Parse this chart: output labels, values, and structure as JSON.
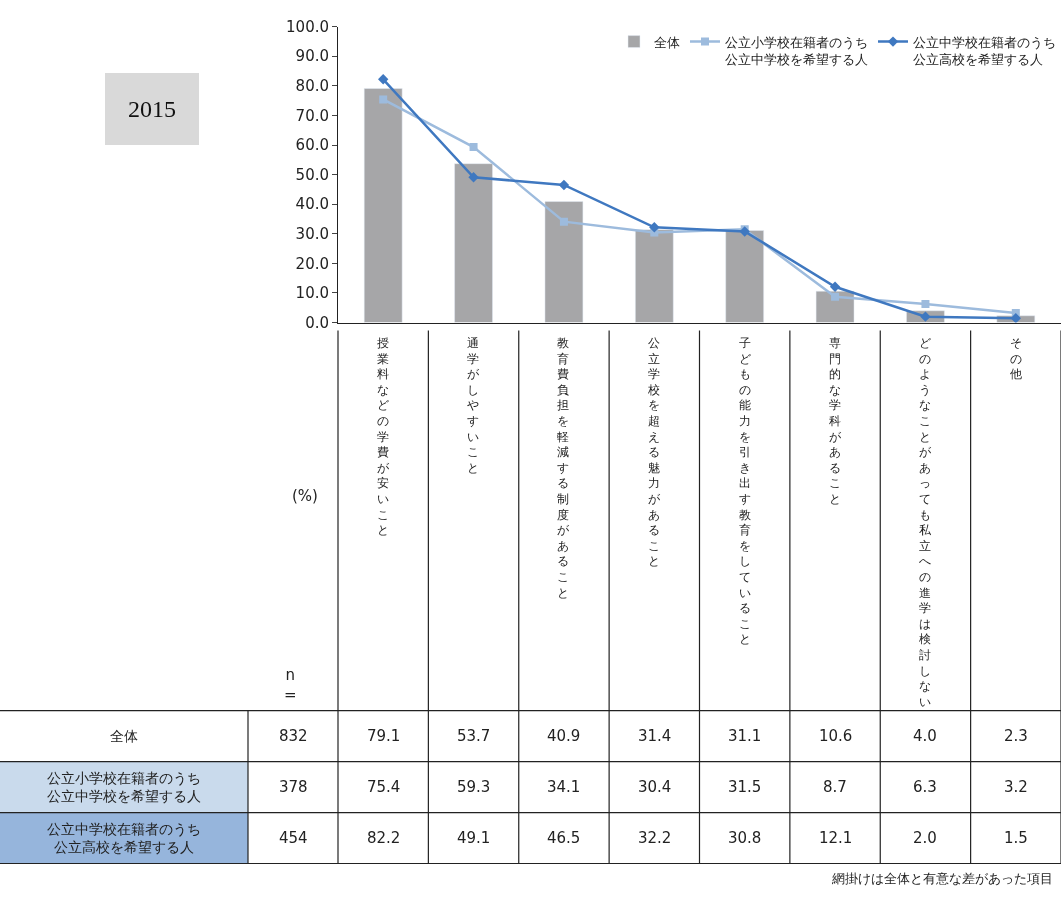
{
  "chart_data": {
    "type": "bar",
    "categories": [
      "授業料などの学費が安いこと",
      "通学がしやすいこと",
      "教育費負担を軽減する制度があること",
      "公立学校を超える魅力があること",
      "子どもの能力を引き出す教育をしていること",
      "専門的な学科があること",
      "どのようなことがあっても私立への進学は検討しない",
      "その他"
    ],
    "series": [
      {
        "name": "全体",
        "color": "#a6a6a8",
        "values": [
          79.1,
          53.7,
          40.9,
          31.4,
          31.1,
          10.6,
          4.0,
          2.3
        ],
        "value_labels": [
          "79.1",
          "53.7",
          "40.9",
          "31.4",
          "31.1",
          "10.6",
          "4.0",
          "2.3"
        ]
      },
      {
        "name": "公立小学校在籍者のうち公立中学校を希望する人",
        "type": "line",
        "marker": "square",
        "color": "#9dbbdd",
        "values": [
          75.4,
          59.3,
          34.1,
          30.4,
          31.5,
          8.7,
          6.3,
          3.2
        ],
        "value_labels": [
          "75.4",
          "59.3",
          "34.1",
          "30.4",
          "31.5",
          "8.7",
          "6.3",
          "3.2"
        ]
      },
      {
        "name": "公立中学校在籍者のうち公立高校を希望する人",
        "type": "line",
        "marker": "diamond",
        "color": "#3f78c0",
        "values": [
          82.2,
          49.1,
          46.5,
          32.2,
          30.8,
          12.1,
          2.0,
          1.5
        ],
        "value_labels": [
          "82.2",
          "49.1",
          "46.5",
          "32.2",
          "30.8",
          "12.1",
          "2.0",
          "1.5"
        ]
      }
    ],
    "ylim": [
      0,
      100
    ],
    "yticks": [
      {
        "value": 0,
        "label": "0.0"
      },
      {
        "value": 10,
        "label": "10.0"
      },
      {
        "value": 20,
        "label": "20.0"
      },
      {
        "value": 30,
        "label": "30.0"
      },
      {
        "value": 40,
        "label": "40.0"
      },
      {
        "value": 50,
        "label": "50.0"
      },
      {
        "value": 60,
        "label": "60.0"
      },
      {
        "value": 70,
        "label": "70.0"
      },
      {
        "value": 80,
        "label": "80.0"
      },
      {
        "value": 90,
        "label": "90.0"
      },
      {
        "value": 100,
        "label": "100.0"
      }
    ],
    "legend": "top right",
    "line_style": "solid",
    "annotations": [
      "2015",
      "(%)",
      "n\n=",
      "832",
      "378",
      "454",
      "網掛けは全体と有意な差があった項目"
    ]
  }
}
